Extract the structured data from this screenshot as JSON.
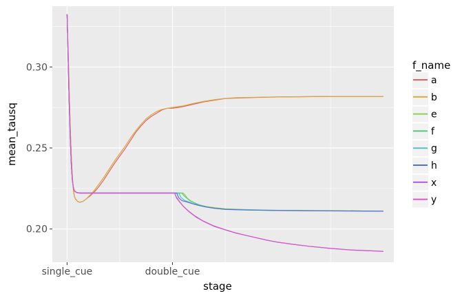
{
  "chart_data": {
    "type": "line",
    "xlabel": "stage",
    "ylabel": "mean_tausq",
    "x_tick_labels": [
      "single_cue",
      "double_cue"
    ],
    "x_tick_positions": [
      0,
      100
    ],
    "xlim": [
      -14,
      310
    ],
    "ylim": [
      0.1795,
      0.3375
    ],
    "y_ticks": [
      0.2,
      0.25,
      0.3
    ],
    "y_tick_labels": [
      "0.20",
      "0.25",
      "0.30"
    ],
    "grid": true,
    "legend": {
      "title": "f_name",
      "placement": "right"
    },
    "series": [
      {
        "name": "a",
        "color": "#e5615c",
        "points": [
          [
            0,
            0.3325
          ],
          [
            1,
            0.31
          ],
          [
            2,
            0.285
          ],
          [
            3,
            0.262
          ],
          [
            4,
            0.245
          ],
          [
            5,
            0.232
          ],
          [
            6,
            0.224
          ],
          [
            7,
            0.22
          ],
          [
            8,
            0.2185
          ],
          [
            10,
            0.217
          ],
          [
            12,
            0.2165
          ],
          [
            15,
            0.217
          ],
          [
            18,
            0.2185
          ],
          [
            22,
            0.2205
          ],
          [
            26,
            0.223
          ],
          [
            30,
            0.226
          ],
          [
            35,
            0.2305
          ],
          [
            40,
            0.2355
          ],
          [
            45,
            0.2405
          ],
          [
            50,
            0.245
          ],
          [
            55,
            0.2495
          ],
          [
            60,
            0.2545
          ],
          [
            65,
            0.2595
          ],
          [
            70,
            0.2635
          ],
          [
            75,
            0.267
          ],
          [
            80,
            0.2695
          ],
          [
            85,
            0.2715
          ],
          [
            90,
            0.2735
          ],
          [
            95,
            0.2745
          ],
          [
            100,
            0.2745
          ],
          [
            110,
            0.2755
          ],
          [
            120,
            0.277
          ],
          [
            130,
            0.2785
          ],
          [
            140,
            0.2795
          ],
          [
            150,
            0.2805
          ],
          [
            160,
            0.2808
          ],
          [
            180,
            0.2812
          ],
          [
            200,
            0.2815
          ],
          [
            250,
            0.2818
          ],
          [
            300,
            0.2818
          ]
        ]
      },
      {
        "name": "b",
        "color": "#d4a843",
        "points": [
          [
            0,
            0.3325
          ],
          [
            1,
            0.31
          ],
          [
            2,
            0.285
          ],
          [
            3,
            0.262
          ],
          [
            4,
            0.245
          ],
          [
            5,
            0.232
          ],
          [
            6,
            0.224
          ],
          [
            7,
            0.22
          ],
          [
            8,
            0.2185
          ],
          [
            10,
            0.217
          ],
          [
            12,
            0.2165
          ],
          [
            15,
            0.217
          ],
          [
            18,
            0.2185
          ],
          [
            22,
            0.221
          ],
          [
            26,
            0.224
          ],
          [
            30,
            0.2275
          ],
          [
            35,
            0.232
          ],
          [
            40,
            0.237
          ],
          [
            45,
            0.242
          ],
          [
            50,
            0.2465
          ],
          [
            55,
            0.251
          ],
          [
            60,
            0.256
          ],
          [
            65,
            0.2605
          ],
          [
            70,
            0.2645
          ],
          [
            75,
            0.268
          ],
          [
            80,
            0.2705
          ],
          [
            85,
            0.2725
          ],
          [
            90,
            0.2738
          ],
          [
            95,
            0.2745
          ],
          [
            100,
            0.275
          ],
          [
            110,
            0.276
          ],
          [
            120,
            0.2775
          ],
          [
            130,
            0.2788
          ],
          [
            140,
            0.2798
          ],
          [
            150,
            0.2806
          ],
          [
            160,
            0.281
          ],
          [
            180,
            0.2813
          ],
          [
            200,
            0.2815
          ],
          [
            250,
            0.2818
          ],
          [
            300,
            0.2818
          ]
        ]
      },
      {
        "name": "e",
        "color": "#8fd14f",
        "points": [
          [
            0,
            0.3325
          ],
          [
            1,
            0.305
          ],
          [
            2,
            0.278
          ],
          [
            3,
            0.256
          ],
          [
            4,
            0.24
          ],
          [
            5,
            0.23
          ],
          [
            6,
            0.2255
          ],
          [
            7,
            0.2235
          ],
          [
            9,
            0.2225
          ],
          [
            12,
            0.2222
          ],
          [
            20,
            0.2222
          ],
          [
            50,
            0.2222
          ],
          [
            80,
            0.2222
          ],
          [
            110,
            0.2222
          ],
          [
            112,
            0.221
          ],
          [
            114,
            0.219
          ],
          [
            117,
            0.2175
          ],
          [
            120,
            0.2165
          ],
          [
            125,
            0.215
          ],
          [
            130,
            0.214
          ],
          [
            140,
            0.2132
          ],
          [
            150,
            0.2125
          ],
          [
            170,
            0.212
          ],
          [
            200,
            0.2115
          ],
          [
            250,
            0.2113
          ],
          [
            300,
            0.211
          ]
        ]
      },
      {
        "name": "f",
        "color": "#57c97a",
        "points": [
          [
            0,
            0.3325
          ],
          [
            1,
            0.305
          ],
          [
            2,
            0.278
          ],
          [
            3,
            0.256
          ],
          [
            4,
            0.24
          ],
          [
            5,
            0.23
          ],
          [
            6,
            0.2255
          ],
          [
            7,
            0.2235
          ],
          [
            9,
            0.2225
          ],
          [
            12,
            0.2222
          ],
          [
            20,
            0.2222
          ],
          [
            50,
            0.2222
          ],
          [
            80,
            0.2222
          ],
          [
            109,
            0.2222
          ],
          [
            111,
            0.2205
          ],
          [
            114,
            0.2188
          ],
          [
            117,
            0.2172
          ],
          [
            121,
            0.216
          ],
          [
            126,
            0.2148
          ],
          [
            132,
            0.2138
          ],
          [
            140,
            0.2128
          ],
          [
            150,
            0.2122
          ],
          [
            170,
            0.2118
          ],
          [
            200,
            0.2115
          ],
          [
            250,
            0.2112
          ],
          [
            300,
            0.211
          ]
        ]
      },
      {
        "name": "g",
        "color": "#4cc3c9",
        "points": [
          [
            0,
            0.3325
          ],
          [
            1,
            0.305
          ],
          [
            2,
            0.278
          ],
          [
            3,
            0.256
          ],
          [
            4,
            0.24
          ],
          [
            5,
            0.23
          ],
          [
            6,
            0.2255
          ],
          [
            7,
            0.2235
          ],
          [
            9,
            0.2225
          ],
          [
            12,
            0.2222
          ],
          [
            20,
            0.2222
          ],
          [
            50,
            0.2222
          ],
          [
            80,
            0.2222
          ],
          [
            106,
            0.2222
          ],
          [
            108,
            0.2195
          ],
          [
            111,
            0.2178
          ],
          [
            115,
            0.2168
          ],
          [
            120,
            0.2155
          ],
          [
            126,
            0.2145
          ],
          [
            133,
            0.2135
          ],
          [
            140,
            0.2128
          ],
          [
            150,
            0.2122
          ],
          [
            170,
            0.2118
          ],
          [
            200,
            0.2114
          ],
          [
            250,
            0.2112
          ],
          [
            300,
            0.211
          ]
        ]
      },
      {
        "name": "h",
        "color": "#5a6fd6",
        "points": [
          [
            0,
            0.3325
          ],
          [
            1,
            0.305
          ],
          [
            2,
            0.278
          ],
          [
            3,
            0.256
          ],
          [
            4,
            0.24
          ],
          [
            5,
            0.23
          ],
          [
            6,
            0.2255
          ],
          [
            7,
            0.2235
          ],
          [
            9,
            0.2225
          ],
          [
            12,
            0.2222
          ],
          [
            20,
            0.2222
          ],
          [
            50,
            0.2222
          ],
          [
            80,
            0.2222
          ],
          [
            104,
            0.2222
          ],
          [
            106,
            0.2192
          ],
          [
            109,
            0.2175
          ],
          [
            113,
            0.2168
          ],
          [
            118,
            0.2158
          ],
          [
            124,
            0.2147
          ],
          [
            131,
            0.2137
          ],
          [
            140,
            0.2128
          ],
          [
            150,
            0.2121
          ],
          [
            170,
            0.2117
          ],
          [
            200,
            0.2114
          ],
          [
            250,
            0.2112
          ],
          [
            300,
            0.211
          ]
        ]
      },
      {
        "name": "x",
        "color": "#a65ce0",
        "points": [
          [
            0,
            0.3325
          ],
          [
            1,
            0.305
          ],
          [
            2,
            0.278
          ],
          [
            3,
            0.256
          ],
          [
            4,
            0.24
          ],
          [
            5,
            0.23
          ],
          [
            6,
            0.2255
          ],
          [
            7,
            0.2235
          ],
          [
            9,
            0.2225
          ],
          [
            12,
            0.2222
          ],
          [
            20,
            0.2222
          ],
          [
            50,
            0.2222
          ],
          [
            80,
            0.2222
          ],
          [
            102,
            0.2222
          ],
          [
            104,
            0.219
          ],
          [
            107,
            0.2165
          ],
          [
            111,
            0.2135
          ],
          [
            116,
            0.2105
          ],
          [
            122,
            0.2075
          ],
          [
            130,
            0.2045
          ],
          [
            140,
            0.2015
          ],
          [
            150,
            0.1995
          ],
          [
            160,
            0.1975
          ],
          [
            170,
            0.196
          ],
          [
            180,
            0.1945
          ],
          [
            190,
            0.193
          ],
          [
            200,
            0.1918
          ],
          [
            215,
            0.1905
          ],
          [
            230,
            0.1893
          ],
          [
            250,
            0.188
          ],
          [
            270,
            0.187
          ],
          [
            290,
            0.1865
          ],
          [
            300,
            0.1862
          ]
        ]
      },
      {
        "name": "y",
        "color": "#d958c7",
        "points": [
          [
            0,
            0.3325
          ],
          [
            1,
            0.305
          ],
          [
            2,
            0.278
          ],
          [
            3,
            0.256
          ],
          [
            4,
            0.24
          ],
          [
            5,
            0.23
          ],
          [
            6,
            0.2255
          ],
          [
            7,
            0.2235
          ],
          [
            9,
            0.2225
          ],
          [
            12,
            0.2222
          ],
          [
            20,
            0.2222
          ],
          [
            50,
            0.2222
          ],
          [
            80,
            0.2222
          ],
          [
            102,
            0.2222
          ],
          [
            103,
            0.2205
          ],
          [
            106,
            0.2175
          ],
          [
            110,
            0.2142
          ],
          [
            115,
            0.2112
          ],
          [
            121,
            0.2082
          ],
          [
            129,
            0.205
          ],
          [
            139,
            0.202
          ],
          [
            149,
            0.1998
          ],
          [
            159,
            0.1978
          ],
          [
            169,
            0.1962
          ],
          [
            179,
            0.1947
          ],
          [
            189,
            0.1932
          ],
          [
            199,
            0.192
          ],
          [
            214,
            0.1906
          ],
          [
            229,
            0.1894
          ],
          [
            249,
            0.1881
          ],
          [
            269,
            0.1871
          ],
          [
            289,
            0.1865
          ],
          [
            300,
            0.1862
          ]
        ]
      }
    ]
  }
}
